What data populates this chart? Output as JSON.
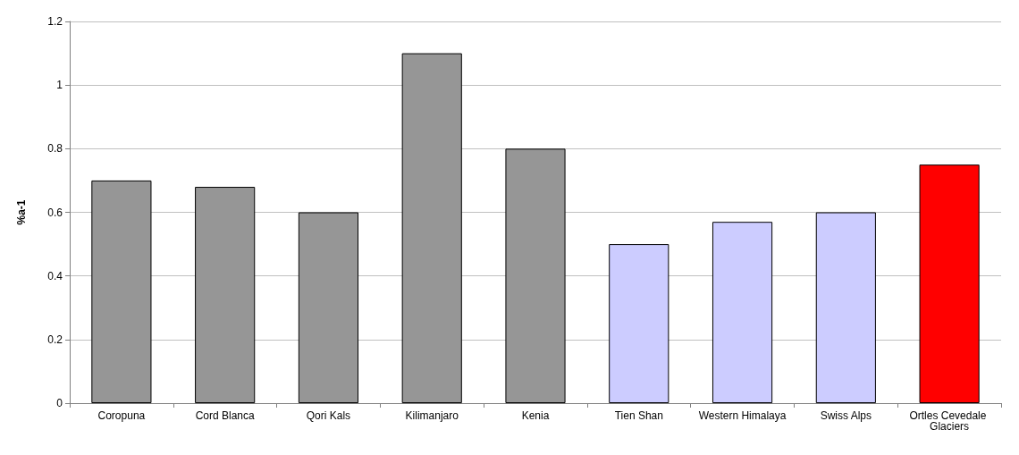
{
  "chart_data": {
    "type": "bar",
    "ylabel": "%a-1",
    "categories": [
      "Coropuna",
      "Cord Blanca",
      "Qori Kals",
      "Kilimanjaro",
      "Kenia",
      "Tien Shan",
      "Western Himalaya",
      "Swiss Alps",
      "Ortles Cevedale Glaciers"
    ],
    "values": [
      0.7,
      0.68,
      0.6,
      1.1,
      0.8,
      0.5,
      0.57,
      0.6,
      0.75
    ],
    "colors": [
      "#969696",
      "#969696",
      "#969696",
      "#969696",
      "#969696",
      "#ccccff",
      "#ccccff",
      "#ccccff",
      "#ff0000"
    ],
    "ylim": [
      0,
      1.2
    ],
    "yticks": [
      0,
      0.2,
      0.4,
      0.6,
      0.8,
      1,
      1.2
    ],
    "grid": "y"
  }
}
